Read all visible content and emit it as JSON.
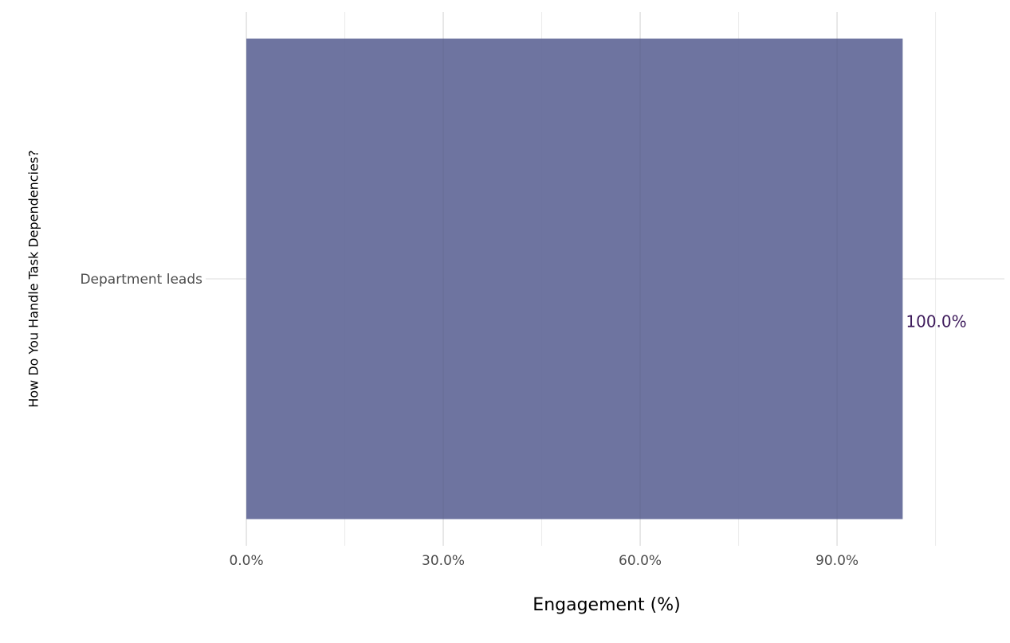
{
  "chart_data": {
    "type": "bar",
    "orientation": "horizontal",
    "x_label": "Engagement (%)",
    "y_label": "How Do You Handle Task Dependencies?",
    "categories": [
      "Department leads"
    ],
    "values": [
      100
    ],
    "value_labels": [
      "100.0%"
    ],
    "color": "#666d9b",
    "label_color": "#3d1a5b",
    "xlim": [
      -6.2,
      115.5
    ],
    "xticks": [
      {
        "value": 0,
        "label": "0.0%"
      },
      {
        "value": 30,
        "label": "30.0%"
      },
      {
        "value": 60,
        "label": "60.0%"
      },
      {
        "value": 90,
        "label": "90.0%"
      }
    ],
    "minor_xticks": [
      15,
      45,
      75,
      105
    ],
    "grid": true
  }
}
